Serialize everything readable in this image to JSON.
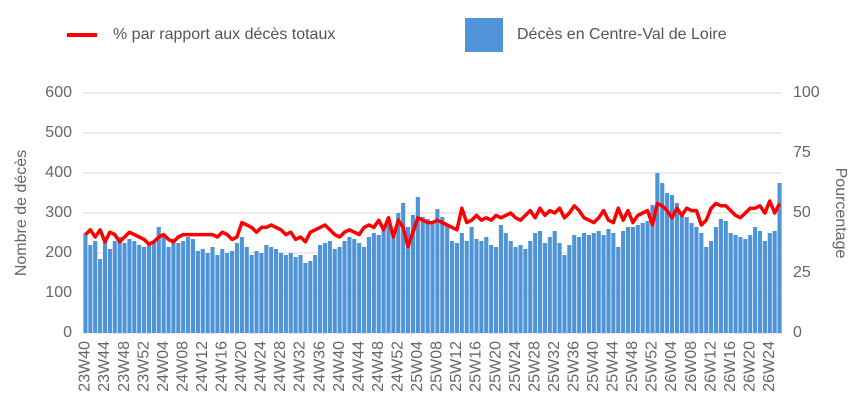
{
  "chart_data": {
    "type": "bar_line",
    "y_label": "Nombre de décès",
    "y2_label": "Pourcentage",
    "categories": [
      "23W40",
      null,
      null,
      null,
      "23W44",
      null,
      null,
      null,
      "23W48",
      null,
      null,
      null,
      "23W52",
      null,
      null,
      null,
      "24W04",
      null,
      null,
      null,
      "24W08",
      null,
      null,
      null,
      "24W12",
      null,
      null,
      null,
      "24W16",
      null,
      null,
      null,
      "24W20",
      null,
      null,
      null,
      "24W24",
      null,
      null,
      null,
      "24W28",
      null,
      null,
      null,
      "24W32",
      null,
      null,
      null,
      "24W36",
      null,
      null,
      null,
      "24W40",
      null,
      null,
      null,
      "24W44",
      null,
      null,
      null,
      "24W48",
      null,
      null,
      null,
      "24W52",
      null,
      null,
      null,
      "25W04",
      null,
      null,
      null,
      "25W08",
      null,
      null,
      null,
      "25W12",
      null,
      null,
      null,
      "25W16",
      null,
      null,
      null,
      "25W20",
      null,
      null,
      null,
      "25W24",
      null,
      null,
      null,
      "25W28",
      null,
      null,
      null,
      "25W32",
      null,
      null,
      null,
      "25W36",
      null,
      null,
      null,
      "25W40",
      null,
      null,
      null,
      "25W44",
      null,
      null,
      null,
      "25W48",
      null,
      null,
      null,
      "25W52",
      null,
      null,
      null,
      "26W04",
      null,
      null,
      null,
      "26W08",
      null,
      null,
      null,
      "26W12",
      null,
      null,
      null,
      "26W16",
      null,
      null,
      null,
      "26W20",
      null,
      null,
      null,
      "26W24",
      null,
      null
    ],
    "series": [
      {
        "name": "% par rapport aux décès totaux",
        "color": "#ff0000",
        "axis": "y2",
        "kind": "line",
        "values": [
          41,
          43,
          40,
          43,
          38,
          42,
          41,
          38,
          40,
          42,
          41,
          40,
          39,
          37,
          38,
          40,
          41,
          39,
          38,
          40,
          41,
          41,
          41,
          41,
          41,
          41,
          41,
          40,
          42,
          41,
          39,
          40,
          46,
          45,
          44,
          42,
          44,
          44,
          45,
          44,
          43,
          41,
          42,
          39,
          40,
          38,
          42,
          43,
          44,
          45,
          43,
          41,
          40,
          42,
          43,
          42,
          41,
          44,
          45,
          44,
          47,
          43,
          48,
          40,
          47,
          44,
          36,
          42,
          48,
          47,
          46,
          46,
          47,
          46,
          45,
          44,
          43,
          52,
          46,
          47,
          49,
          47,
          48,
          47,
          49,
          48,
          49,
          50,
          48,
          47,
          49,
          51,
          48,
          52,
          49,
          51,
          50,
          52,
          48,
          50,
          53,
          51,
          48,
          47,
          46,
          48,
          51,
          47,
          46,
          52,
          47,
          51,
          46,
          49,
          50,
          51,
          45,
          54,
          53,
          51,
          48,
          52,
          49,
          52,
          51,
          51,
          45,
          47,
          52,
          54,
          53,
          53,
          51,
          49,
          48,
          50,
          52,
          52,
          53,
          50,
          55,
          50,
          54
        ]
      },
      {
        "name": "Décès en Centre-Val de Loire",
        "color": "#4f93d8",
        "kind": "bar",
        "values": [
          250,
          220,
          230,
          185,
          235,
          210,
          230,
          240,
          225,
          235,
          230,
          220,
          215,
          220,
          230,
          265,
          240,
          215,
          235,
          225,
          230,
          240,
          235,
          205,
          210,
          200,
          215,
          195,
          210,
          200,
          205,
          225,
          240,
          215,
          195,
          205,
          200,
          220,
          215,
          210,
          200,
          195,
          200,
          190,
          195,
          175,
          180,
          195,
          220,
          225,
          230,
          210,
          215,
          230,
          240,
          235,
          225,
          215,
          240,
          250,
          245,
          260,
          275,
          255,
          300,
          325,
          265,
          295,
          340,
          290,
          285,
          280,
          310,
          290,
          270,
          230,
          225,
          250,
          230,
          265,
          235,
          230,
          240,
          220,
          215,
          270,
          250,
          230,
          215,
          220,
          210,
          230,
          250,
          255,
          225,
          240,
          255,
          225,
          195,
          220,
          245,
          240,
          250,
          245,
          250,
          255,
          245,
          260,
          250,
          215,
          255,
          265,
          265,
          270,
          275,
          280,
          320,
          400,
          375,
          350,
          345,
          325,
          300,
          290,
          275,
          265,
          250,
          215,
          230,
          265,
          285,
          280,
          250,
          245,
          240,
          235,
          245,
          265,
          255,
          230,
          250,
          255,
          375
        ]
      }
    ],
    "ylim": [
      0,
      600
    ],
    "yticks": [
      0,
      100,
      200,
      300,
      400,
      500,
      600
    ],
    "y2lim": [
      0,
      100
    ],
    "y2ticks": [
      0,
      25,
      50,
      75,
      100
    ],
    "grid": true
  }
}
